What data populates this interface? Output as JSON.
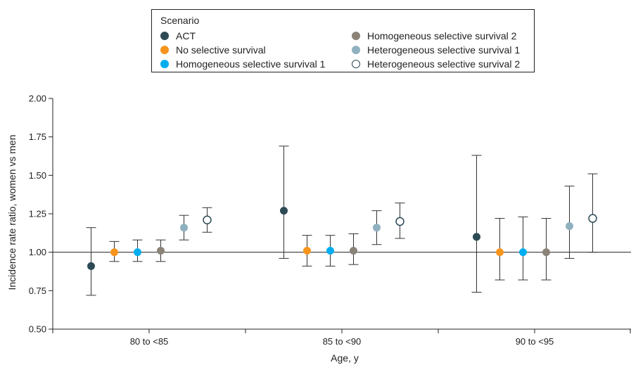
{
  "chart_data": {
    "type": "scatter",
    "title": "",
    "xlabel": "Age, y",
    "ylabel": "Incidence rate ratio, women vs men",
    "ylim": [
      0.5,
      2.0
    ],
    "yticks": [
      "0.50",
      "0.75",
      "1.00",
      "1.25",
      "1.50",
      "1.75",
      "2.00"
    ],
    "reference_line": 1.0,
    "categories": [
      "80 to <85",
      "85 to <90",
      "90 to <95"
    ],
    "legend": {
      "title": "Scenario",
      "placement": "top-center"
    },
    "series": [
      {
        "name": "ACT",
        "color": "#2d4a55",
        "hollow": false,
        "values": [
          0.91,
          1.27,
          1.1
        ],
        "lower": [
          0.72,
          0.96,
          0.74
        ],
        "upper": [
          1.16,
          1.69,
          1.63
        ]
      },
      {
        "name": "No selective survival",
        "color": "#f7941d",
        "hollow": false,
        "values": [
          1.0,
          1.01,
          1.0
        ],
        "lower": [
          0.94,
          0.91,
          0.82
        ],
        "upper": [
          1.07,
          1.11,
          1.22
        ]
      },
      {
        "name": "Homogeneous selective survival 1",
        "color": "#00aeef",
        "hollow": false,
        "values": [
          1.0,
          1.01,
          1.0
        ],
        "lower": [
          0.94,
          0.91,
          0.82
        ],
        "upper": [
          1.08,
          1.11,
          1.23
        ]
      },
      {
        "name": "Homogeneous selective survival 2",
        "color": "#8b8378",
        "hollow": false,
        "values": [
          1.01,
          1.01,
          1.0
        ],
        "lower": [
          0.94,
          0.92,
          0.82
        ],
        "upper": [
          1.08,
          1.12,
          1.22
        ]
      },
      {
        "name": "Heterogeneous selective survival 1",
        "color": "#8fb1bf",
        "hollow": false,
        "values": [
          1.16,
          1.16,
          1.17
        ],
        "lower": [
          1.08,
          1.05,
          0.96
        ],
        "upper": [
          1.24,
          1.27,
          1.43
        ]
      },
      {
        "name": "Heterogeneous selective survival 2",
        "color": "#2d4a55",
        "hollow": true,
        "values": [
          1.21,
          1.2,
          1.22
        ],
        "lower": [
          1.13,
          1.09,
          1.0
        ],
        "upper": [
          1.29,
          1.32,
          1.51
        ]
      }
    ]
  }
}
